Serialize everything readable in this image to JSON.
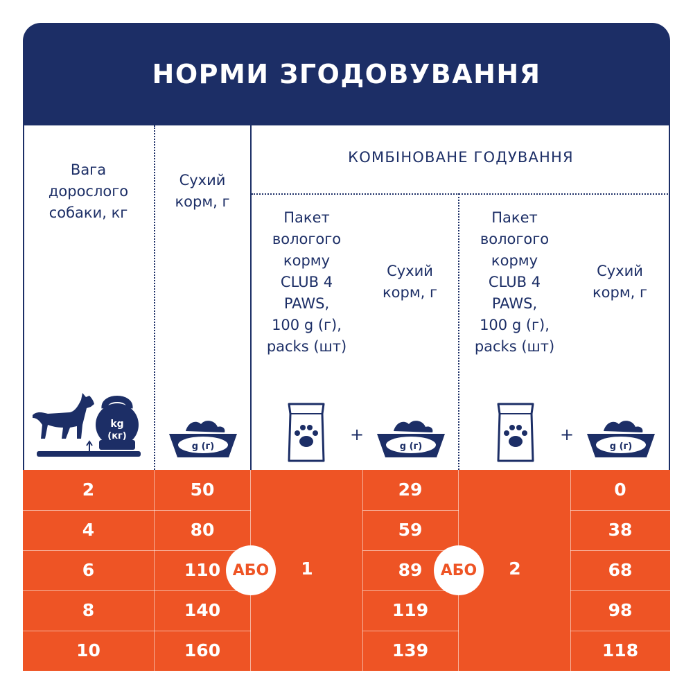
{
  "title": "НОРМИ ЗГОДОВУВАННЯ",
  "headers": {
    "weight": "Вага\nдорослого\nсобаки, кг",
    "dry": "Сухий\nкорм, г",
    "combined": "КОМБІНОВАНЕ ГОДУВАННЯ",
    "pack": "Пакет\nвологого\nкорму\nCLUB 4\nPAWS,\n100 g (г),\npacks (шт)",
    "dry2": "Сухий\nкорм, г"
  },
  "icons": {
    "kettlebell_label1": "kg",
    "kettlebell_label2": "(кг)",
    "bowl_label": "g (г)",
    "plus": "+"
  },
  "colors": {
    "navy": "#1c2e66",
    "orange": "#ee5425"
  },
  "rows": [
    {
      "weight": "2",
      "dry": "50",
      "combo1_dry": "29",
      "combo2_dry": "0"
    },
    {
      "weight": "4",
      "dry": "80",
      "combo1_dry": "59",
      "combo2_dry": "38"
    },
    {
      "weight": "6",
      "dry": "110",
      "combo1_dry": "89",
      "combo2_dry": "68"
    },
    {
      "weight": "8",
      "dry": "140",
      "combo1_dry": "119",
      "combo2_dry": "98"
    },
    {
      "weight": "10",
      "dry": "160",
      "combo1_dry": "139",
      "combo2_dry": "118"
    }
  ],
  "combo1_packs": "1",
  "combo2_packs": "2",
  "or_label": "АБО"
}
